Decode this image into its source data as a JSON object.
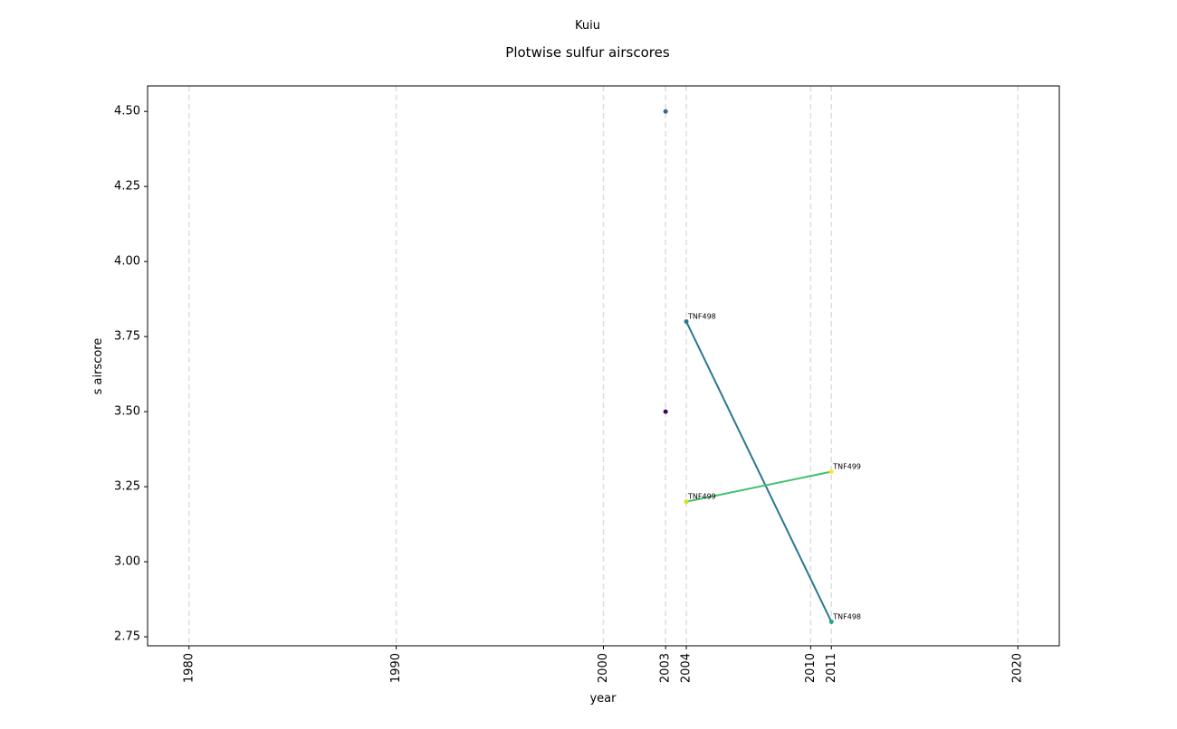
{
  "chart_data": {
    "type": "line",
    "title": "Kuiu",
    "subtitle": "Plotwise sulfur airscores",
    "x_label": "year",
    "y_label": "s airscore",
    "xlim": [
      1978,
      2022
    ],
    "xticks": [
      1980,
      1990,
      2000,
      2003,
      2004,
      2010,
      2011,
      2020
    ],
    "ylim": [
      2.72,
      4.585
    ],
    "yticks": [
      {
        "value": 2.75,
        "label": "2.75"
      },
      {
        "value": 3.0,
        "label": "3.00"
      },
      {
        "value": 3.25,
        "label": "3.25"
      },
      {
        "value": 3.5,
        "label": "3.50"
      },
      {
        "value": 3.75,
        "label": "3.75"
      },
      {
        "value": 4.0,
        "label": "4.00"
      },
      {
        "value": 4.25,
        "label": "4.25"
      },
      {
        "value": 4.5,
        "label": "4.50"
      }
    ],
    "grid": "x",
    "series": [
      {
        "name": "TNF498",
        "color": "#2a788e",
        "marker_colors": [
          "#2a788e",
          "#22a884"
        ],
        "x": [
          2004,
          2011
        ],
        "values": [
          3.8,
          2.8
        ]
      },
      {
        "name": "TNF499",
        "color": "#43bf71",
        "marker_colors": [
          "#d2e21b",
          "#fde725"
        ],
        "x": [
          2004,
          2011
        ],
        "values": [
          3.2,
          3.3
        ]
      },
      {
        "color": "#31688e",
        "x": [
          2003
        ],
        "values": [
          4.5
        ]
      },
      {
        "color": "#440154",
        "x": [
          2003
        ],
        "values": [
          3.5
        ]
      }
    ]
  }
}
